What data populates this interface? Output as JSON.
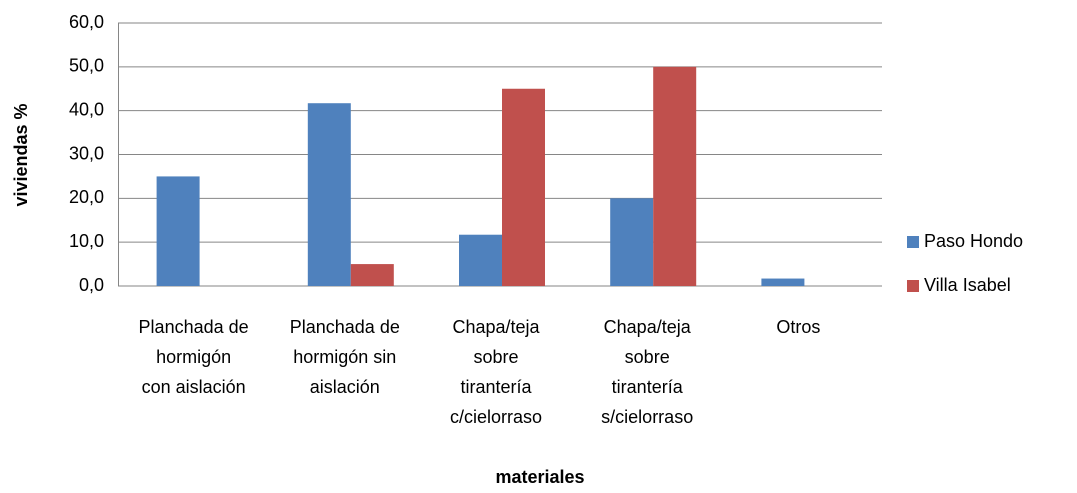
{
  "chart_data": {
    "type": "bar",
    "categories": [
      [
        "Planchada de",
        "hormigón",
        "con aislación"
      ],
      [
        "Planchada de",
        "hormigón sin",
        "aislación"
      ],
      [
        "Chapa/teja",
        "sobre",
        "tirantería",
        "c/cielorraso"
      ],
      [
        "Chapa/teja",
        "sobre",
        "tirantería",
        "s/cielorraso"
      ],
      [
        "Otros"
      ]
    ],
    "series": [
      {
        "name": "Paso Hondo",
        "color": "#4f81bd",
        "values": [
          25.0,
          41.7,
          11.7,
          20.0,
          1.7
        ]
      },
      {
        "name": "Villa Isabel",
        "color": "#c0504d",
        "values": [
          0,
          5.0,
          45.0,
          50.0,
          0
        ]
      }
    ],
    "xlabel": "materiales",
    "ylabel": "viviendas %",
    "ylim": [
      0,
      60
    ],
    "yticks": [
      {
        "value": 0,
        "label": "0,0"
      },
      {
        "value": 10,
        "label": "10,0"
      },
      {
        "value": 20,
        "label": "20,0"
      },
      {
        "value": 30,
        "label": "30,0"
      },
      {
        "value": 40,
        "label": "40,0"
      },
      {
        "value": 50,
        "label": "50,0"
      },
      {
        "value": 60,
        "label": "60,0"
      }
    ],
    "grid": true,
    "legend": "right"
  }
}
